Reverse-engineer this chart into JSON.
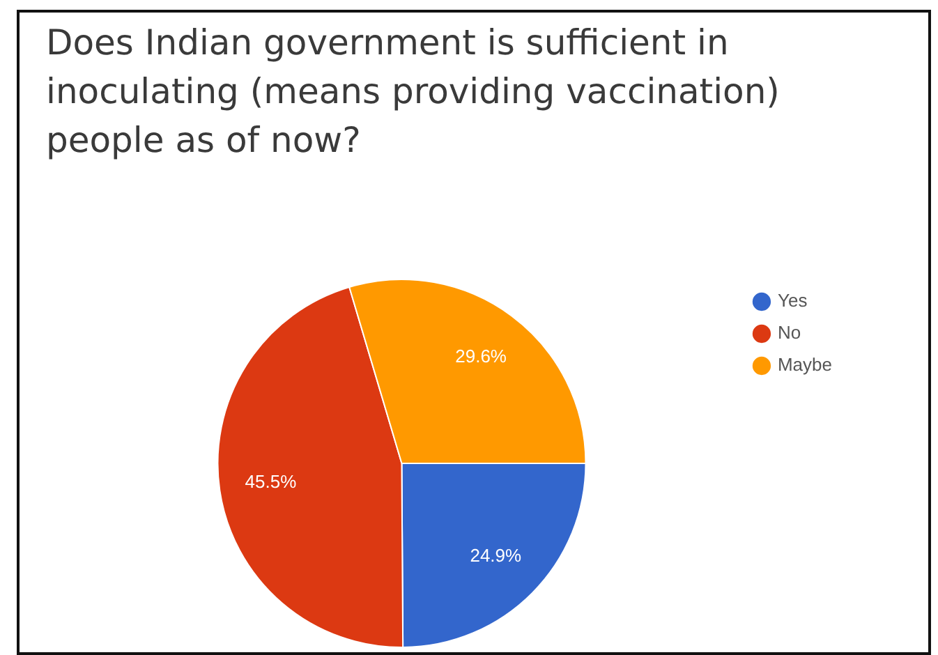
{
  "chart_data": {
    "type": "pie",
    "title": "Does Indian government is sufficient in inoculating (means providing vaccination) people as of now?",
    "categories": [
      "Yes",
      "No",
      "Maybe"
    ],
    "values": [
      24.9,
      45.5,
      29.6
    ],
    "colors": [
      "#3366cc",
      "#dc3912",
      "#ff9900"
    ],
    "value_labels": [
      "24.9%",
      "45.5%",
      "29.6%"
    ],
    "legend": "right"
  }
}
